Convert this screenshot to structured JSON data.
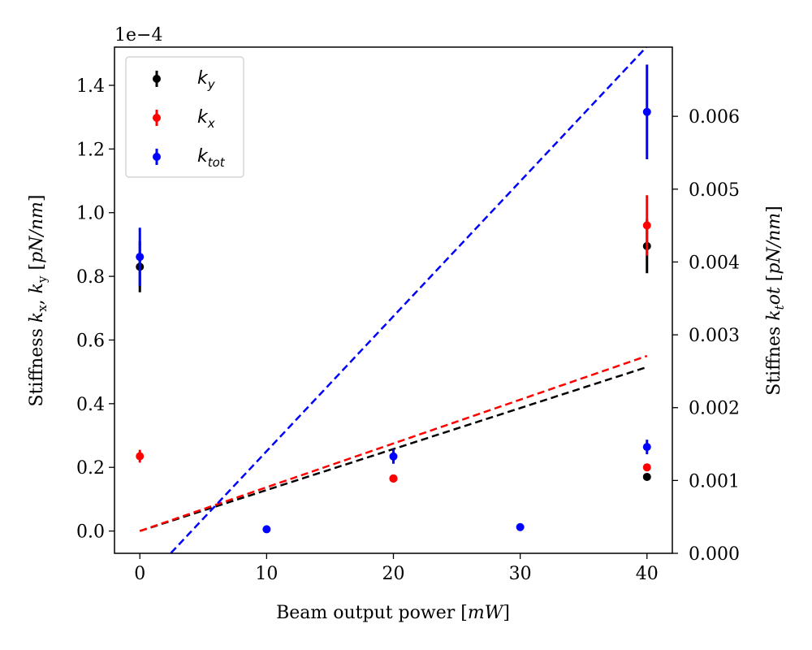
{
  "chart_data": {
    "type": "scatter",
    "xlabel": "Beam output power [mW]",
    "ylabel_left": "Stiffness kx, ky [pN/nm]",
    "ylabel_right": "Stiffnes ktot [pN/nm]",
    "left_scale_label": "1e−4",
    "xlim": [
      -2,
      42
    ],
    "ylim_left": [
      -0.07,
      1.52
    ],
    "ylim_right": [
      0.0,
      0.00695
    ],
    "x_ticks": [
      "0",
      "10",
      "20",
      "30",
      "40"
    ],
    "y_left_ticks": [
      "0.0",
      "0.2",
      "0.4",
      "0.6",
      "0.8",
      "1.0",
      "1.2",
      "1.4"
    ],
    "y_right_ticks": [
      "0.000",
      "0.001",
      "0.002",
      "0.003",
      "0.004",
      "0.005",
      "0.006"
    ],
    "legend": {
      "position": "top-left",
      "entries": [
        {
          "main": "k",
          "sub": "y"
        },
        {
          "main": "k",
          "sub": "x"
        },
        {
          "main": "k",
          "sub": "tot"
        }
      ]
    },
    "colors": {
      "ky": "#000000",
      "kx": "#ff0000",
      "ktot": "#0000ff"
    },
    "series": [
      {
        "key": "ky",
        "axis": "left",
        "color": "#000000",
        "points": [
          {
            "x": 0,
            "y": 0.83,
            "err": 0.08
          },
          {
            "x": 20,
            "y": 0.165,
            "err": 0.01
          },
          {
            "x": 40,
            "y": 0.17,
            "err": 0.01
          },
          {
            "x": 40,
            "y": 0.895,
            "err": 0.085
          }
        ],
        "fit": {
          "x": [
            0,
            40
          ],
          "y": [
            0.0,
            0.515
          ]
        }
      },
      {
        "key": "kx",
        "axis": "left",
        "color": "#ff0000",
        "points": [
          {
            "x": 0,
            "y": 0.235,
            "err": 0.02
          },
          {
            "x": 20,
            "y": 0.165,
            "err": 0.01
          },
          {
            "x": 40,
            "y": 0.2,
            "err": 0.01
          },
          {
            "x": 40,
            "y": 0.96,
            "err": 0.095
          }
        ],
        "fit": {
          "x": [
            0,
            40
          ],
          "y": [
            0.0,
            0.55
          ]
        }
      },
      {
        "key": "ktot",
        "axis": "right",
        "color": "#0000ff",
        "points": [
          {
            "x": 0,
            "y": 0.00407,
            "err": 0.0004
          },
          {
            "x": 10,
            "y": 0.00033,
            "err": 3e-05
          },
          {
            "x": 20,
            "y": 0.00133,
            "err": 0.0001
          },
          {
            "x": 30,
            "y": 0.00036,
            "err": 3e-05
          },
          {
            "x": 40,
            "y": 0.00146,
            "err": 0.0001
          },
          {
            "x": 40,
            "y": 0.00606,
            "err": 0.00065
          }
        ],
        "fit": {
          "x": [
            0,
            40
          ],
          "y": [
            0.0,
            0.00699
          ]
        }
      }
    ]
  }
}
